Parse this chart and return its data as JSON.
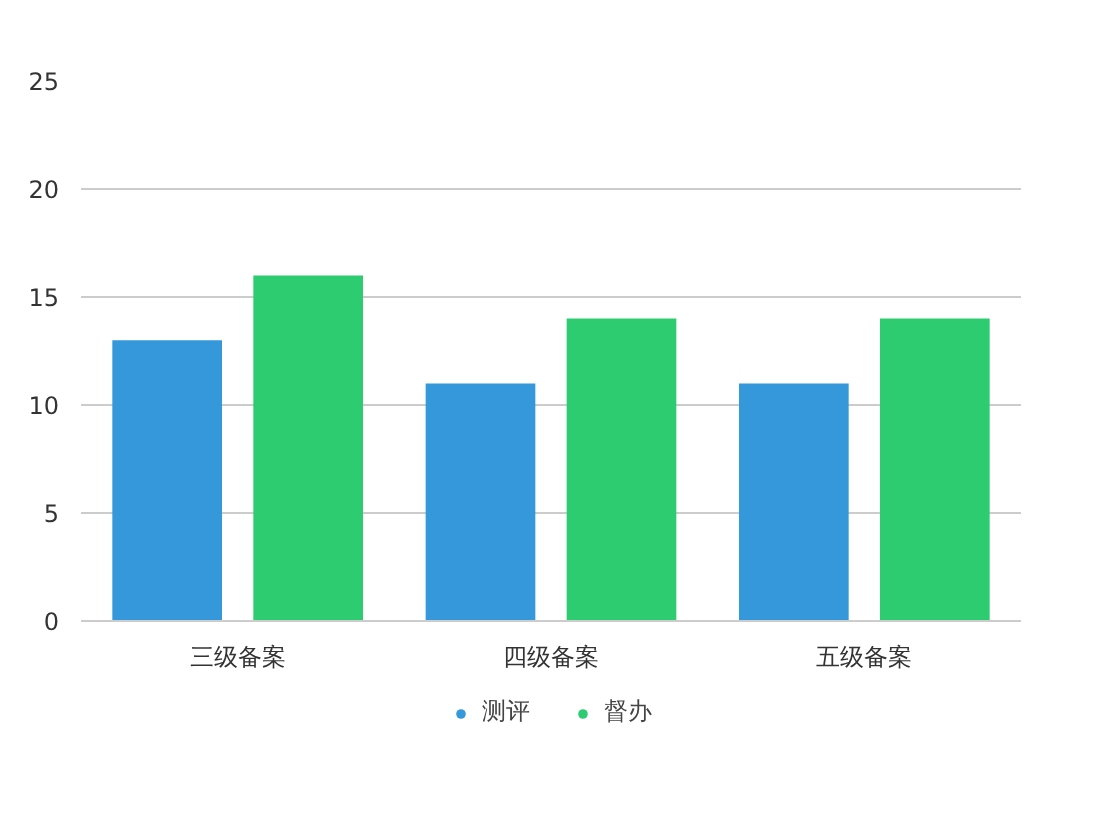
{
  "chart_data": {
    "type": "bar",
    "categories": [
      "三级备案",
      "四级备案",
      "五级备案"
    ],
    "series": [
      {
        "name": "测评",
        "color": "#3498db",
        "values": [
          13,
          11,
          11
        ]
      },
      {
        "name": "督办",
        "color": "#2ecc71",
        "values": [
          16,
          14,
          14
        ]
      }
    ],
    "ylim": [
      0,
      25
    ],
    "yticks": [
      0,
      5,
      10,
      15,
      20,
      25
    ],
    "grid": "y",
    "legend": "bottom"
  }
}
